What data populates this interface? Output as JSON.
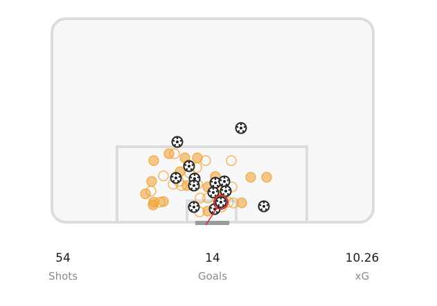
{
  "colors": {
    "pitch_fill": "#f7f7f7",
    "pitch_line": "#dcdcdc",
    "goal_frame": "#9a9a9a",
    "shot": "#f0a030",
    "goal_ball": "#222222",
    "highlight": "#e0202a"
  },
  "icons": {
    "goal_marker": "soccer-ball-icon"
  },
  "stats": {
    "shots": {
      "value": "54",
      "label": "Shots"
    },
    "goals": {
      "value": "14",
      "label": "Goals"
    },
    "xg": {
      "value": "10.26",
      "label": "xG"
    }
  }
}
